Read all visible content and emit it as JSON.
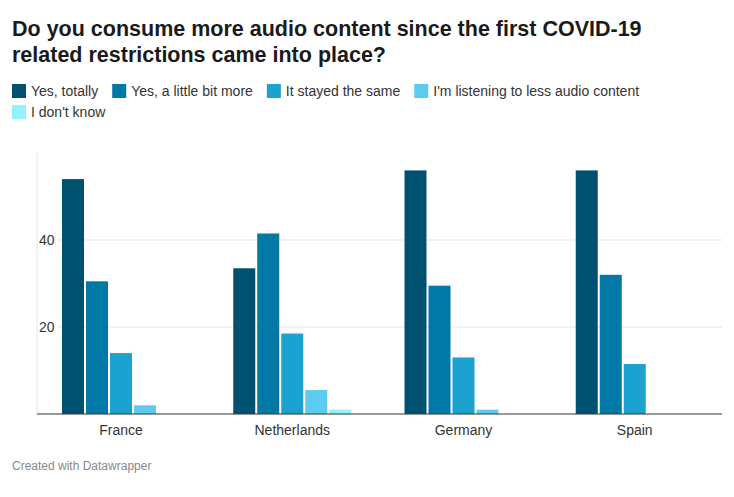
{
  "chart_data": {
    "type": "bar",
    "title": "Do you consume more audio content since the first COVID-19 related restrictions came into place?",
    "categories": [
      "France",
      "Netherlands",
      "Germany",
      "Spain"
    ],
    "series": [
      {
        "name": "Yes, totally",
        "color": "#00506f",
        "values": [
          54,
          33.5,
          56,
          56
        ]
      },
      {
        "name": "Yes, a little bit more",
        "color": "#0278a6",
        "values": [
          30.5,
          41.5,
          29.5,
          32
        ]
      },
      {
        "name": "It stayed the same",
        "color": "#1ba2cf",
        "values": [
          14,
          18.5,
          13,
          11.5
        ]
      },
      {
        "name": "I'm listening to less audio content",
        "color": "#5ccbf0",
        "values": [
          2,
          5.5,
          1,
          0
        ]
      },
      {
        "name": "I don't know",
        "color": "#93f0fd",
        "values": [
          0,
          1,
          0,
          0
        ]
      }
    ],
    "ylim": [
      0,
      60
    ],
    "yticks": [
      20,
      40
    ],
    "grid": true,
    "legend": "top",
    "footer": "Created with Datawrapper"
  }
}
